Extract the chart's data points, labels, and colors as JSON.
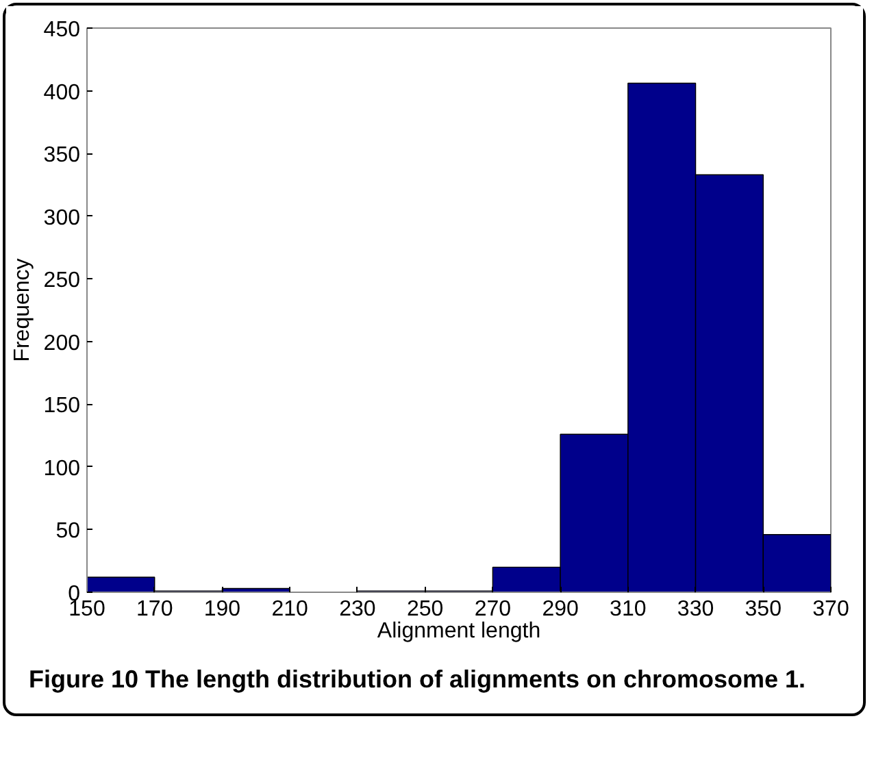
{
  "chart_data": {
    "type": "histogram",
    "xlabel": "Alignment length",
    "ylabel": "Frequency",
    "bins": [
      150,
      170,
      190,
      210,
      230,
      250,
      270,
      290,
      310,
      330,
      350,
      370
    ],
    "values": [
      12,
      1,
      3,
      0,
      1,
      1,
      20,
      126,
      406,
      333,
      46
    ],
    "color": "#00008b",
    "xlim": [
      150,
      370
    ],
    "xticks": [
      150,
      170,
      190,
      210,
      230,
      250,
      270,
      290,
      310,
      330,
      350,
      370
    ],
    "ylim": [
      0,
      450
    ],
    "yticks": [
      0,
      50,
      100,
      150,
      200,
      250,
      300,
      350,
      400,
      450
    ],
    "grid": false,
    "annotations": [
      "Figure 10 The length distribution of alignments on chromosome 1."
    ]
  }
}
